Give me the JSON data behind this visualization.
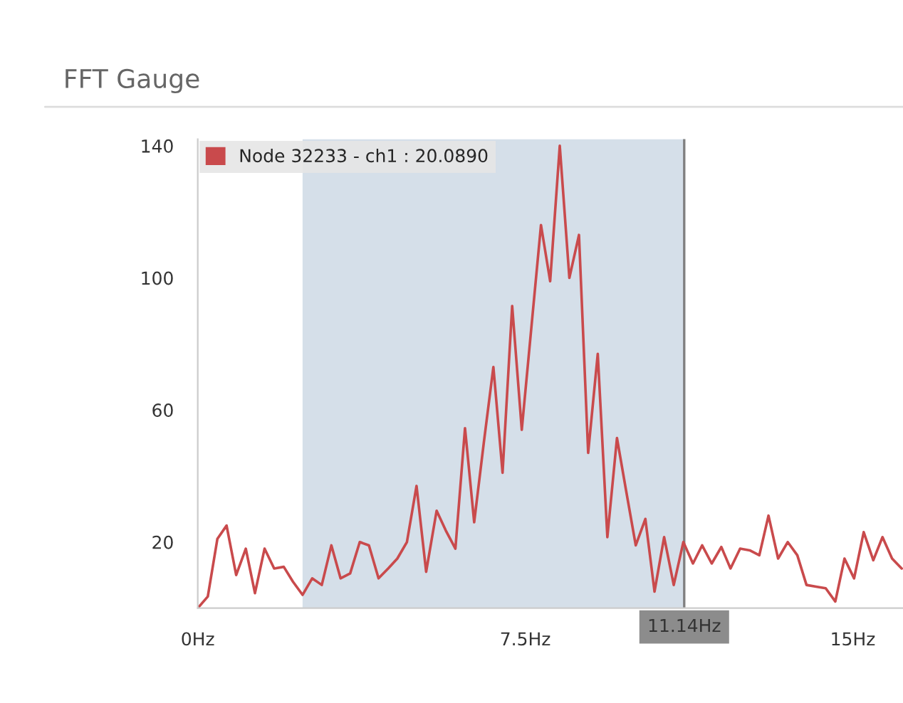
{
  "chart_data": {
    "type": "line",
    "title": "FFT Gauge",
    "x": [
      0,
      0.23,
      0.45,
      0.66,
      0.88,
      1.1,
      1.31,
      1.53,
      1.75,
      1.97,
      2.18,
      2.4,
      2.62,
      2.84,
      3.06,
      3.27,
      3.49,
      3.71,
      3.92,
      4.14,
      4.36,
      4.57,
      4.79,
      5.01,
      5.23,
      5.47,
      5.68,
      5.9,
      6.12,
      6.33,
      6.55,
      6.77,
      6.98,
      7.2,
      7.42,
      7.64,
      7.86,
      8.07,
      8.29,
      8.51,
      8.73,
      8.94,
      9.16,
      9.38,
      9.6,
      9.81,
      10.03,
      10.25,
      10.46,
      10.68,
      10.9,
      11.12,
      11.34,
      11.55,
      11.77,
      11.99,
      12.2,
      12.42,
      12.64,
      12.86,
      13.07,
      13.29,
      13.51,
      13.73,
      13.94,
      14.16,
      14.38,
      14.6,
      14.81,
      15.03,
      15.25,
      15.47,
      15.68,
      15.9,
      16.12
    ],
    "series": [
      {
        "name": "Node 32233 - ch1 : 20.0890",
        "color": "#c94a4c",
        "values": [
          0,
          3.5,
          21,
          25,
          10,
          18,
          4.5,
          18,
          12,
          12.5,
          8,
          4,
          9,
          7,
          19,
          9,
          10.5,
          20,
          19,
          9,
          12,
          15,
          20,
          37,
          11,
          29.5,
          23.5,
          18,
          54.5,
          26,
          50,
          73,
          41,
          91.5,
          54,
          85,
          116,
          99,
          140,
          100,
          113,
          47,
          77,
          21.5,
          51.5,
          35.5,
          19,
          27,
          5,
          21.5,
          7,
          20,
          13.5,
          19,
          13.5,
          18.5,
          12,
          18,
          17.5,
          16,
          28,
          15,
          20,
          16,
          7,
          6.5,
          6,
          2,
          15,
          9,
          23,
          14.5,
          21.5,
          15,
          12
        ]
      }
    ],
    "xlim": [
      0,
      16.15
    ],
    "ylim": [
      0,
      142
    ],
    "xticks": [
      {
        "value": 0,
        "label": "0Hz"
      },
      {
        "value": 7.5,
        "label": "7.5Hz"
      },
      {
        "value": 15,
        "label": "15Hz"
      }
    ],
    "yticks": [
      20,
      60,
      100,
      140
    ],
    "bands": [
      {
        "axis": "x",
        "from": 2.4,
        "to": 11.14,
        "color": "#d5dfe9"
      }
    ],
    "ref_lines": [
      {
        "axis": "x",
        "value": 11.14,
        "label": "11.14Hz",
        "color": "#808080"
      }
    ],
    "grid": false,
    "legend": "top left",
    "marker": "none",
    "line_style": "solid"
  }
}
